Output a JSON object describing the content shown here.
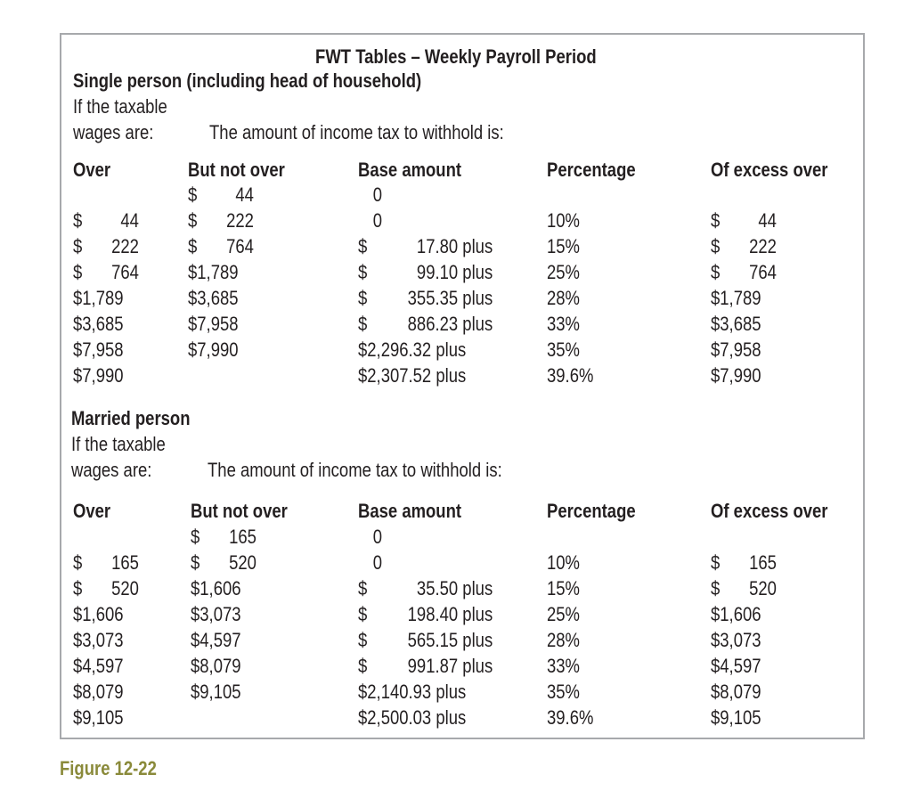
{
  "title": "FWT Tables – Weekly Payroll Period",
  "caption": "Figure 12-22",
  "headers": {
    "over": "Over",
    "but_not_over": "But not over",
    "base_amount": "Base amount",
    "percentage": "Percentage",
    "of_excess_over": "Of excess over"
  },
  "intro": {
    "line1": "If the taxable",
    "line2": "wages are:",
    "withhold": "The amount of income tax to withhold is:"
  },
  "single": {
    "heading": "Single person (including head of household)",
    "rows": [
      {
        "over": [
          "",
          ""
        ],
        "not_over": [
          "$",
          "44"
        ],
        "base": [
          "",
          "0"
        ],
        "pct": "",
        "excess": [
          "",
          ""
        ]
      },
      {
        "over": [
          "$",
          "44"
        ],
        "not_over": [
          "$",
          "222"
        ],
        "base": [
          "",
          "0"
        ],
        "pct": "10%",
        "excess": [
          "$",
          "44"
        ]
      },
      {
        "over": [
          "$",
          "222"
        ],
        "not_over": [
          "$",
          "764"
        ],
        "base": [
          "$",
          "17.80 plus"
        ],
        "pct": "15%",
        "excess": [
          "$",
          "222"
        ]
      },
      {
        "over": [
          "$",
          "764"
        ],
        "not_over": [
          "$1,789",
          ""
        ],
        "base": [
          "$",
          "99.10 plus"
        ],
        "pct": "25%",
        "excess": [
          "$",
          "764"
        ]
      },
      {
        "over": [
          "$1,789",
          ""
        ],
        "not_over": [
          "$3,685",
          ""
        ],
        "base": [
          "$",
          "355.35 plus"
        ],
        "pct": "28%",
        "excess": [
          "$1,789",
          ""
        ]
      },
      {
        "over": [
          "$3,685",
          ""
        ],
        "not_over": [
          "$7,958",
          ""
        ],
        "base": [
          "$",
          "886.23 plus"
        ],
        "pct": "33%",
        "excess": [
          "$3,685",
          ""
        ]
      },
      {
        "over": [
          "$7,958",
          ""
        ],
        "not_over": [
          "$7,990",
          ""
        ],
        "base": [
          "$2,296.32 plus",
          ""
        ],
        "pct": "35%",
        "excess": [
          "$7,958",
          ""
        ]
      },
      {
        "over": [
          "$7,990",
          ""
        ],
        "not_over": [
          "",
          ""
        ],
        "base": [
          "$2,307.52 plus",
          ""
        ],
        "pct": "39.6%",
        "excess": [
          "$7,990",
          ""
        ]
      }
    ]
  },
  "married": {
    "heading": "Married person",
    "rows": [
      {
        "over": [
          "",
          ""
        ],
        "not_over": [
          "$",
          "165"
        ],
        "base": [
          "",
          "0"
        ],
        "pct": "",
        "excess": [
          "",
          ""
        ]
      },
      {
        "over": [
          "$",
          "165"
        ],
        "not_over": [
          "$",
          "520"
        ],
        "base": [
          "",
          "0"
        ],
        "pct": "10%",
        "excess": [
          "$",
          "165"
        ]
      },
      {
        "over": [
          "$",
          "520"
        ],
        "not_over": [
          "$1,606",
          ""
        ],
        "base": [
          "$",
          "35.50 plus"
        ],
        "pct": "15%",
        "excess": [
          "$",
          "520"
        ]
      },
      {
        "over": [
          "$1,606",
          ""
        ],
        "not_over": [
          "$3,073",
          ""
        ],
        "base": [
          "$",
          "198.40 plus"
        ],
        "pct": "25%",
        "excess": [
          "$1,606",
          ""
        ]
      },
      {
        "over": [
          "$3,073",
          ""
        ],
        "not_over": [
          "$4,597",
          ""
        ],
        "base": [
          "$",
          "565.15 plus"
        ],
        "pct": "28%",
        "excess": [
          "$3,073",
          ""
        ]
      },
      {
        "over": [
          "$4,597",
          ""
        ],
        "not_over": [
          "$8,079",
          ""
        ],
        "base": [
          "$",
          "991.87 plus"
        ],
        "pct": "33%",
        "excess": [
          "$4,597",
          ""
        ]
      },
      {
        "over": [
          "$8,079",
          ""
        ],
        "not_over": [
          "$9,105",
          ""
        ],
        "base": [
          "$2,140.93 plus",
          ""
        ],
        "pct": "35%",
        "excess": [
          "$8,079",
          ""
        ]
      },
      {
        "over": [
          "$9,105",
          ""
        ],
        "not_over": [
          "",
          ""
        ],
        "base": [
          "$2,500.03 plus",
          ""
        ],
        "pct": "39.6%",
        "excess": [
          "$9,105",
          ""
        ]
      }
    ]
  }
}
